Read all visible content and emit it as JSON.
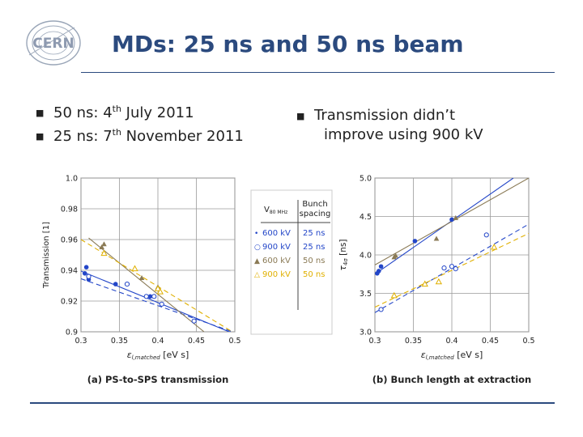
{
  "slide": {
    "logo_text": "CERN",
    "title": "MDs: 25 ns and 50 ns beam",
    "left_bullets": [
      {
        "pre": "50 ns: 4",
        "sup": "th",
        "post": " July 2011"
      },
      {
        "pre": "25 ns: 7",
        "sup": "th",
        "post": " November 2011"
      }
    ],
    "right_bullet": {
      "line1": "Transmission didn’t",
      "line2": "improve using 900 kV"
    }
  },
  "chart_data": [
    {
      "type": "scatter",
      "title": "(a) PS-to-SPS transmission",
      "ylabel": "Transmission [1]",
      "xlabel_main": "ε",
      "xlabel_sub": "l,matched",
      "xlabel_unit": " [eV s]",
      "xlim": [
        0.3,
        0.5
      ],
      "ylim": [
        0.9,
        1.0
      ],
      "xticks": [
        "0.3",
        "0.35",
        "0.4",
        "0.45",
        "0.5"
      ],
      "yticks": [
        "0.9",
        "0.92",
        "0.94",
        "0.96",
        "0.98",
        "1.0"
      ],
      "legend": {
        "header_v": "V",
        "header_v_sub": "80 MHz",
        "header_b1": "Bunch",
        "header_b2": "spacing",
        "entries": [
          {
            "marker": "•",
            "voltage": "600 kV",
            "spacing": "25 ns",
            "color": "#2346c8"
          },
          {
            "marker": "○",
            "voltage": "900 kV",
            "spacing": "25 ns",
            "color": "#2346c8"
          },
          {
            "marker": "▲",
            "voltage": "600 kV",
            "spacing": "50 ns",
            "color": "#8a7a55"
          },
          {
            "marker": "△",
            "voltage": "900 kV",
            "spacing": "50 ns",
            "color": "#e0b000"
          }
        ]
      },
      "series": [
        {
          "name": "600 kV 25 ns",
          "marker": "dot",
          "color": "#2346c8",
          "x": [
            0.305,
            0.307,
            0.31,
            0.345,
            0.39
          ],
          "y": [
            0.938,
            0.942,
            0.934,
            0.931,
            0.923
          ],
          "fit": {
            "x": [
              0.3,
              0.5
            ],
            "y": [
              0.9395,
              0.8985
            ],
            "dash": false
          }
        },
        {
          "name": "900 kV 25 ns",
          "marker": "ring",
          "color": "#2346c8",
          "x": [
            0.31,
            0.36,
            0.385,
            0.395,
            0.405,
            0.447
          ],
          "y": [
            0.936,
            0.931,
            0.923,
            0.923,
            0.918,
            0.907
          ],
          "fit": {
            "x": [
              0.3,
              0.5
            ],
            "y": [
              0.9345,
              0.8995
            ],
            "dash": true
          }
        },
        {
          "name": "600 kV 50 ns",
          "marker": "triangle",
          "color": "#8a7a55",
          "x": [
            0.327,
            0.33,
            0.379,
            0.4
          ],
          "y": [
            0.955,
            0.957,
            0.935,
            0.929
          ],
          "fit": {
            "x": [
              0.31,
              0.46
            ],
            "y": [
              0.961,
              0.9
            ],
            "dash": false
          }
        },
        {
          "name": "900 kV 50 ns",
          "marker": "triangle-open",
          "color": "#e0b000",
          "x": [
            0.33,
            0.37,
            0.4,
            0.403
          ],
          "y": [
            0.951,
            0.941,
            0.928,
            0.926
          ],
          "fit": {
            "x": [
              0.3,
              0.5
            ],
            "y": [
              0.96,
              0.899
            ],
            "dash": true
          }
        }
      ]
    },
    {
      "type": "scatter",
      "title": "(b) Bunch length at extraction",
      "ylabel_main": "τ",
      "ylabel_sub": "4σ",
      "ylabel_unit": " [ns]",
      "xlabel_main": "ε",
      "xlabel_sub": "l,matched",
      "xlabel_unit": " [eV s]",
      "xlim": [
        0.3,
        0.5
      ],
      "ylim": [
        3.0,
        5.0
      ],
      "xticks": [
        "0.3",
        "0.35",
        "0.4",
        "0.45",
        "0.5"
      ],
      "yticks": [
        "3.0",
        "3.5",
        "4.0",
        "4.5",
        "5.0"
      ],
      "series": [
        {
          "name": "600 kV 25 ns",
          "marker": "dot",
          "color": "#2346c8",
          "x": [
            0.303,
            0.305,
            0.308,
            0.352,
            0.4
          ],
          "y": [
            3.76,
            3.79,
            3.85,
            4.18,
            4.46
          ],
          "fit": {
            "x": [
              0.3,
              0.48
            ],
            "y": [
              3.75,
              5.0
            ],
            "dash": false
          }
        },
        {
          "name": "900 kV 25 ns",
          "marker": "ring",
          "color": "#2346c8",
          "x": [
            0.308,
            0.39,
            0.4,
            0.405,
            0.445
          ],
          "y": [
            3.29,
            3.83,
            3.85,
            3.82,
            4.26
          ],
          "fit": {
            "x": [
              0.3,
              0.5
            ],
            "y": [
              3.25,
              4.4
            ],
            "dash": true
          }
        },
        {
          "name": "600 kV 50 ns",
          "marker": "triangle",
          "color": "#8a7a55",
          "x": [
            0.325,
            0.327,
            0.38,
            0.405
          ],
          "y": [
            3.97,
            3.99,
            4.21,
            4.48
          ],
          "fit": {
            "x": [
              0.3,
              0.5
            ],
            "y": [
              3.87,
              5.0
            ],
            "dash": false
          }
        },
        {
          "name": "900 kV 50 ns",
          "marker": "triangle-open",
          "color": "#e0b000",
          "x": [
            0.325,
            0.365,
            0.383,
            0.455
          ],
          "y": [
            3.47,
            3.62,
            3.65,
            4.1
          ],
          "fit": {
            "x": [
              0.3,
              0.5
            ],
            "y": [
              3.32,
              4.28
            ],
            "dash": true
          }
        }
      ]
    }
  ]
}
